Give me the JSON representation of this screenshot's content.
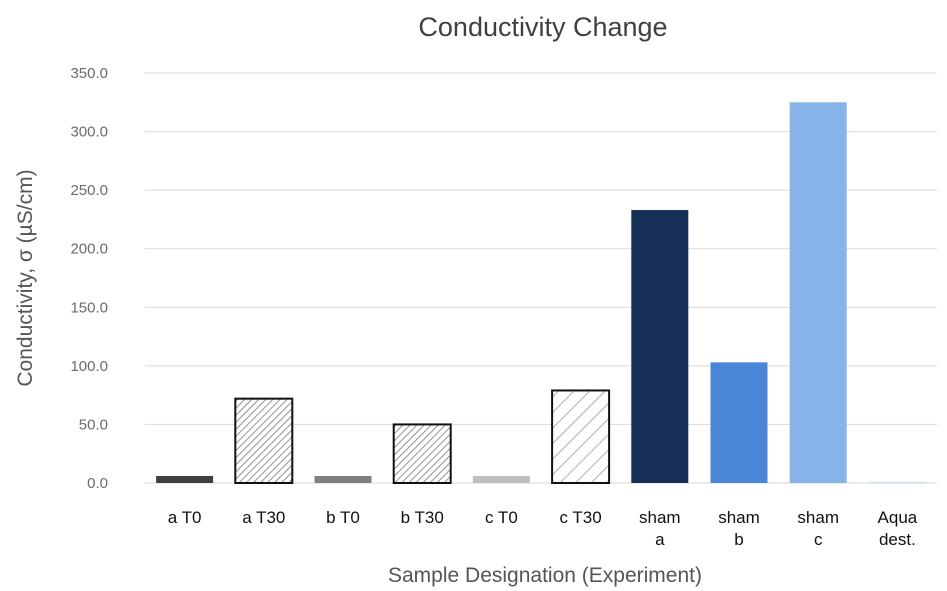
{
  "chart_data": {
    "type": "bar",
    "title": "Conductivity Change",
    "xlabel": "Sample Designation (Experiment)",
    "ylabel": "Conductivity, σ (µS/cm)",
    "ylim": [
      0,
      350
    ],
    "yticks": [
      "0.0",
      "50.0",
      "100.0",
      "150.0",
      "200.0",
      "250.0",
      "300.0",
      "350.0"
    ],
    "grid": true,
    "categories": [
      [
        "a T0"
      ],
      [
        "a T30"
      ],
      [
        "b T0"
      ],
      [
        "b T30"
      ],
      [
        "c T0"
      ],
      [
        "c T30"
      ],
      [
        "sham",
        "a"
      ],
      [
        "sham",
        "b"
      ],
      [
        "sham",
        "c"
      ],
      [
        "Aqua",
        "dest."
      ]
    ],
    "values": [
      6,
      72,
      6,
      50,
      6,
      79,
      233,
      103,
      325,
      1
    ],
    "bar_styles": [
      {
        "fill": "#404040",
        "pattern": "none",
        "outline": false
      },
      {
        "fill": "#ffffff",
        "pattern": "dense-diagonal",
        "outline": true
      },
      {
        "fill": "#808080",
        "pattern": "none",
        "outline": false
      },
      {
        "fill": "#ffffff",
        "pattern": "dense-diagonal",
        "outline": true
      },
      {
        "fill": "#bfbfbf",
        "pattern": "none",
        "outline": false
      },
      {
        "fill": "#ffffff",
        "pattern": "wide-diagonal",
        "outline": true
      },
      {
        "fill": "#152f56",
        "pattern": "none",
        "outline": false
      },
      {
        "fill": "#4a86d8",
        "pattern": "none",
        "outline": false
      },
      {
        "fill": "#86b3e8",
        "pattern": "none",
        "outline": false
      },
      {
        "fill": "#c9dcf2",
        "pattern": "none",
        "outline": false
      }
    ]
  }
}
